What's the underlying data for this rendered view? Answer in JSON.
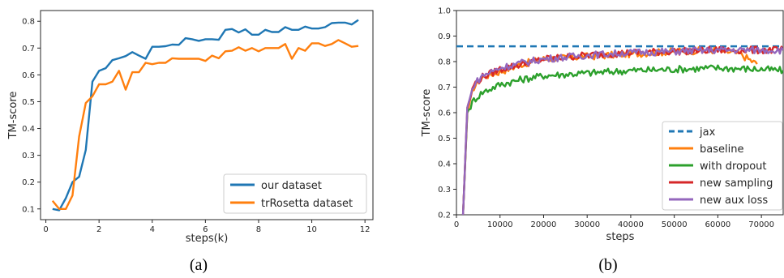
{
  "colors": {
    "blue": "#1f77b4",
    "orange": "#ff7f0e",
    "green": "#2ca02c",
    "red": "#d62728",
    "purple": "#9467bd"
  },
  "captions": [
    "(a)",
    "(b)"
  ],
  "chart_data": [
    {
      "type": "line",
      "xlabel": "steps(k)",
      "ylabel": "TM-score",
      "xlim": [
        -0.2,
        12.3
      ],
      "ylim": [
        0.06,
        0.84
      ],
      "xticks": [
        0,
        2,
        4,
        6,
        8,
        10,
        12
      ],
      "yticks": [
        0.1,
        0.2,
        0.3,
        0.4,
        0.5,
        0.6,
        0.7,
        0.8
      ],
      "legend_position": "bottom-right",
      "grid": false,
      "series": [
        {
          "name": "our dataset",
          "color": "#1f77b4",
          "x": [
            0.25,
            0.5,
            0.75,
            1.0,
            1.25,
            1.5,
            1.75,
            2.0,
            2.25,
            2.5,
            2.75,
            3.0,
            3.25,
            3.5,
            3.75,
            4.0,
            4.25,
            4.5,
            4.75,
            5.0,
            5.25,
            5.5,
            5.75,
            6.0,
            6.25,
            6.5,
            6.75,
            7.0,
            7.25,
            7.5,
            7.75,
            8.0,
            8.25,
            8.5,
            8.75,
            9.0,
            9.25,
            9.5,
            9.75,
            10.0,
            10.25,
            10.5,
            10.75,
            11.0,
            11.25,
            11.5,
            11.75
          ],
          "y": [
            0.1,
            0.095,
            0.14,
            0.2,
            0.22,
            0.32,
            0.575,
            0.615,
            0.625,
            0.655,
            0.662,
            0.67,
            0.685,
            0.672,
            0.66,
            0.705,
            0.705,
            0.707,
            0.713,
            0.712,
            0.737,
            0.733,
            0.727,
            0.733,
            0.733,
            0.731,
            0.768,
            0.771,
            0.758,
            0.77,
            0.75,
            0.75,
            0.768,
            0.76,
            0.76,
            0.778,
            0.768,
            0.768,
            0.78,
            0.773,
            0.773,
            0.778,
            0.793,
            0.795,
            0.795,
            0.788,
            0.805
          ]
        },
        {
          "name": "trRosetta dataset",
          "color": "#ff7f0e",
          "x": [
            0.25,
            0.5,
            0.75,
            1.0,
            1.25,
            1.5,
            1.75,
            2.0,
            2.25,
            2.5,
            2.75,
            3.0,
            3.25,
            3.5,
            3.75,
            4.0,
            4.25,
            4.5,
            4.75,
            5.0,
            5.25,
            5.5,
            5.75,
            6.0,
            6.25,
            6.5,
            6.75,
            7.0,
            7.25,
            7.5,
            7.75,
            8.0,
            8.25,
            8.5,
            8.75,
            9.0,
            9.25,
            9.5,
            9.75,
            10.0,
            10.25,
            10.5,
            10.75,
            11.0,
            11.25,
            11.5,
            11.75
          ],
          "y": [
            0.13,
            0.1,
            0.1,
            0.15,
            0.37,
            0.495,
            0.52,
            0.565,
            0.565,
            0.575,
            0.615,
            0.545,
            0.61,
            0.61,
            0.645,
            0.64,
            0.645,
            0.645,
            0.662,
            0.66,
            0.66,
            0.66,
            0.66,
            0.652,
            0.672,
            0.662,
            0.688,
            0.69,
            0.703,
            0.69,
            0.7,
            0.688,
            0.7,
            0.7,
            0.7,
            0.715,
            0.66,
            0.7,
            0.69,
            0.718,
            0.718,
            0.708,
            0.715,
            0.73,
            0.718,
            0.705,
            0.708
          ]
        }
      ]
    },
    {
      "type": "line",
      "xlabel": "steps",
      "ylabel": "TM-score",
      "xlim": [
        0,
        75000
      ],
      "ylim": [
        0.2,
        1.0
      ],
      "xticks": [
        0,
        10000,
        20000,
        30000,
        40000,
        50000,
        60000,
        70000
      ],
      "yticks": [
        0.2,
        0.3,
        0.4,
        0.5,
        0.6,
        0.7,
        0.8,
        0.9,
        1.0
      ],
      "legend_position": "lower-right",
      "grid": false,
      "reference_lines": [
        {
          "name": "jax",
          "y": 0.86,
          "style": "dashed",
          "color": "#1f77b4"
        }
      ],
      "series": [
        {
          "name": "baseline",
          "color": "#ff7f0e",
          "points": [
            [
              1500,
              0.2
            ],
            [
              2500,
              0.6
            ],
            [
              4000,
              0.7
            ],
            [
              6000,
              0.74
            ],
            [
              10000,
              0.76
            ],
            [
              15000,
              0.79
            ],
            [
              20000,
              0.81
            ],
            [
              30000,
              0.82
            ],
            [
              40000,
              0.83
            ],
            [
              50000,
              0.84
            ],
            [
              60000,
              0.845
            ],
            [
              65000,
              0.83
            ],
            [
              69000,
              0.79
            ]
          ]
        },
        {
          "name": "with dropout",
          "color": "#2ca02c",
          "points": [
            [
              1500,
              0.2
            ],
            [
              2500,
              0.6
            ],
            [
              4000,
              0.65
            ],
            [
              6000,
              0.68
            ],
            [
              10000,
              0.71
            ],
            [
              15000,
              0.73
            ],
            [
              20000,
              0.745
            ],
            [
              30000,
              0.755
            ],
            [
              40000,
              0.765
            ],
            [
              50000,
              0.77
            ],
            [
              60000,
              0.775
            ],
            [
              70000,
              0.77
            ],
            [
              75000,
              0.765
            ]
          ]
        },
        {
          "name": "new sampling",
          "color": "#d62728",
          "points": [
            [
              1500,
              0.2
            ],
            [
              2500,
              0.62
            ],
            [
              4000,
              0.71
            ],
            [
              6000,
              0.74
            ],
            [
              10000,
              0.77
            ],
            [
              15000,
              0.79
            ],
            [
              20000,
              0.81
            ],
            [
              30000,
              0.825
            ],
            [
              40000,
              0.835
            ],
            [
              50000,
              0.84
            ],
            [
              60000,
              0.845
            ],
            [
              70000,
              0.845
            ],
            [
              75000,
              0.845
            ]
          ]
        },
        {
          "name": "new aux loss",
          "color": "#9467bd",
          "points": [
            [
              1500,
              0.2
            ],
            [
              2500,
              0.62
            ],
            [
              4000,
              0.71
            ],
            [
              6000,
              0.745
            ],
            [
              10000,
              0.775
            ],
            [
              15000,
              0.795
            ],
            [
              20000,
              0.81
            ],
            [
              30000,
              0.825
            ],
            [
              40000,
              0.835
            ],
            [
              50000,
              0.84
            ],
            [
              60000,
              0.845
            ],
            [
              70000,
              0.845
            ],
            [
              75000,
              0.845
            ]
          ]
        }
      ],
      "legend": [
        "jax",
        "baseline",
        "with dropout",
        "new sampling",
        "new aux loss"
      ]
    }
  ]
}
